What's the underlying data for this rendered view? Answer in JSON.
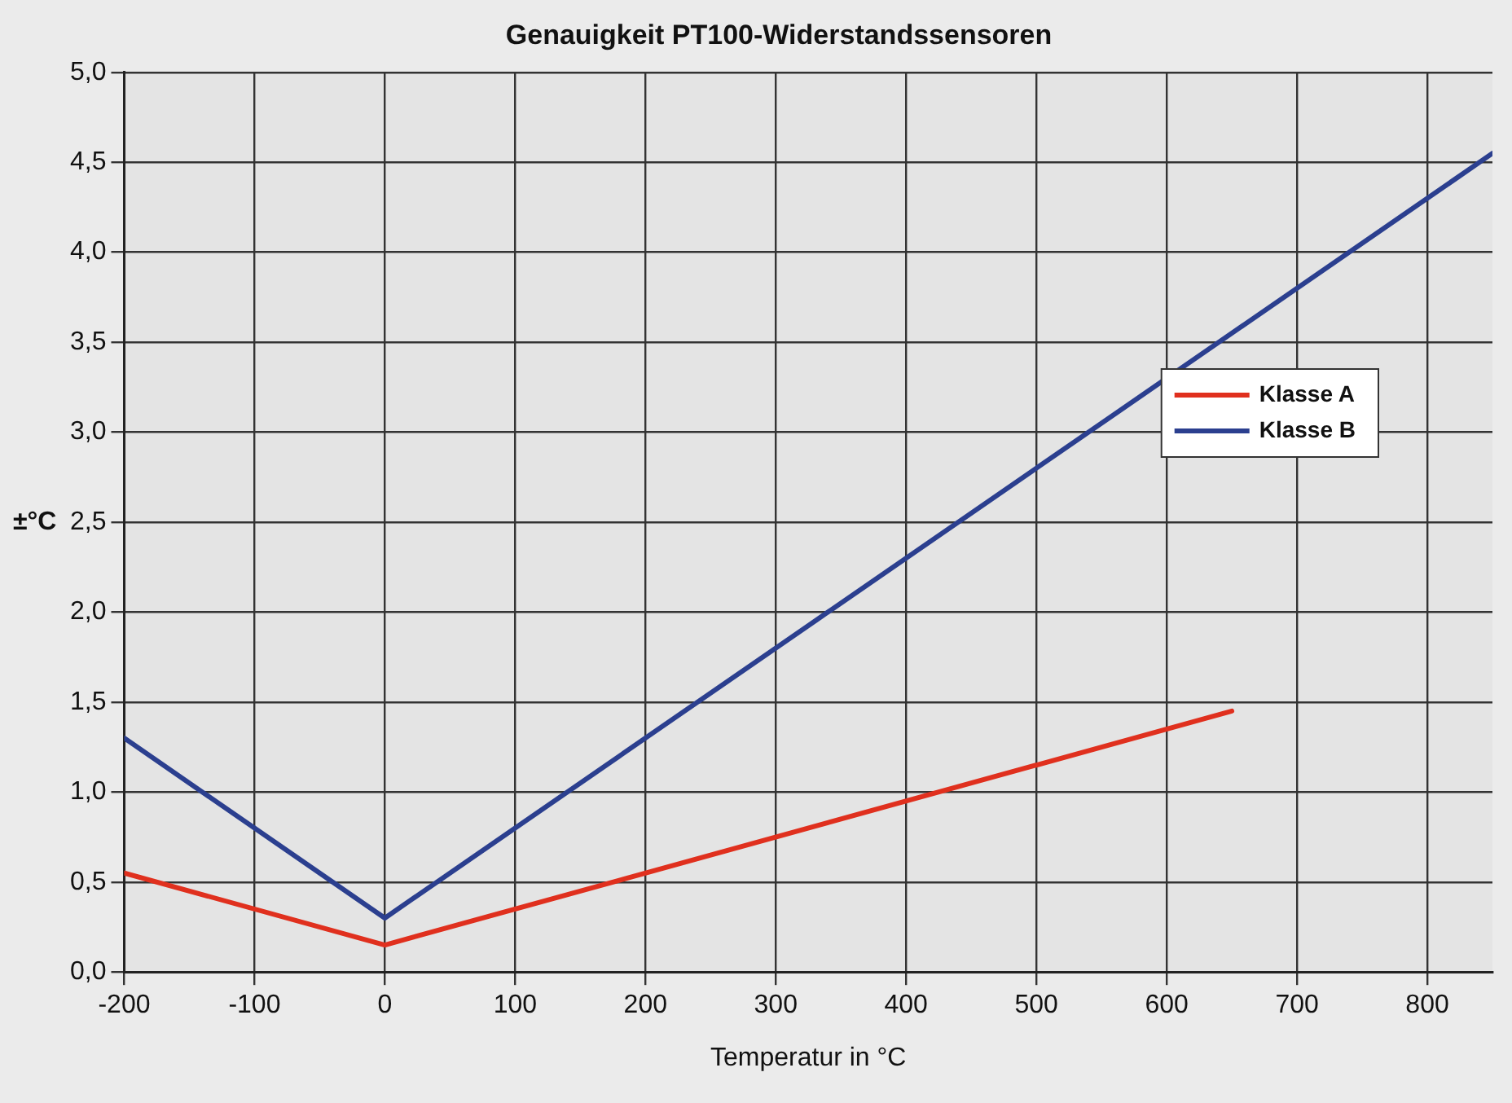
{
  "chart_data": {
    "type": "line",
    "title": "Genauigkeit PT100-Widerstandssensoren",
    "xlabel": "Temperatur in °C",
    "ylabel": "±°C",
    "series": [
      {
        "name": "Klasse A",
        "color": "#e0301e",
        "x": [
          -200,
          0,
          650
        ],
        "values": [
          0.55,
          0.15,
          1.45
        ]
      },
      {
        "name": "Klasse B",
        "color": "#2b3f8f",
        "x": [
          -200,
          0,
          850
        ],
        "values": [
          1.3,
          0.3,
          4.55
        ]
      }
    ],
    "xlim": [
      -200,
      850
    ],
    "xticks": [
      -200,
      -100,
      0,
      100,
      200,
      300,
      400,
      500,
      600,
      700,
      800
    ],
    "ylim": [
      0,
      5
    ],
    "yticks": [
      {
        "value": 0,
        "label": "0,0"
      },
      {
        "value": 0.5,
        "label": "0,5"
      },
      {
        "value": 1,
        "label": "1,0"
      },
      {
        "value": 1.5,
        "label": "1,5"
      },
      {
        "value": 2,
        "label": "2,0"
      },
      {
        "value": 2.5,
        "label": "2,5"
      },
      {
        "value": 3,
        "label": "3,0"
      },
      {
        "value": 3.5,
        "label": "3,5"
      },
      {
        "value": 4,
        "label": "4,0"
      },
      {
        "value": 4.5,
        "label": "4,5"
      },
      {
        "value": 5,
        "label": "5,0"
      }
    ],
    "grid": true,
    "legend": "right",
    "marker": "none",
    "line_style": "solid"
  }
}
